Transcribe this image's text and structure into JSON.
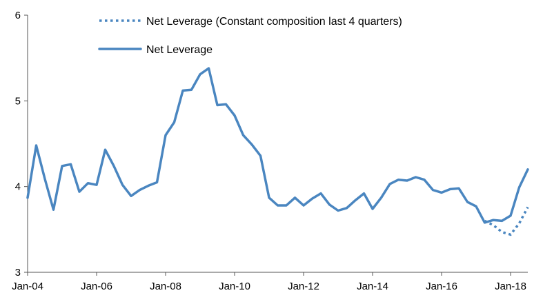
{
  "chart_data": {
    "type": "line",
    "title": "",
    "xlabel": "",
    "ylabel": "",
    "x_range": [
      "2004-01",
      "2018-07"
    ],
    "ylim": [
      3,
      6
    ],
    "y_ticks": [
      3,
      4,
      5,
      6
    ],
    "x_ticks": [
      "Jan-04",
      "Jan-06",
      "Jan-08",
      "Jan-10",
      "Jan-12",
      "Jan-14",
      "Jan-16",
      "Jan-18"
    ],
    "x_tick_positions": [
      "2004-01",
      "2006-01",
      "2008-01",
      "2010-01",
      "2012-01",
      "2014-01",
      "2016-01",
      "2018-01"
    ],
    "grid": false,
    "legend_position": "top-left",
    "color": "#4a86c0",
    "series": [
      {
        "name": "Net Leverage (Constant composition last 4 quarters)",
        "style": "dotted",
        "x": [
          "2017-04",
          "2017-07",
          "2017-10",
          "2018-01",
          "2018-04",
          "2018-07"
        ],
        "y": [
          3.6,
          3.55,
          3.47,
          3.44,
          3.57,
          3.76
        ]
      },
      {
        "name": "Net Leverage",
        "style": "solid",
        "x": [
          "2004-01",
          "2004-04",
          "2004-07",
          "2004-10",
          "2005-01",
          "2005-04",
          "2005-07",
          "2005-10",
          "2006-01",
          "2006-04",
          "2006-07",
          "2006-10",
          "2007-01",
          "2007-04",
          "2007-07",
          "2007-10",
          "2008-01",
          "2008-04",
          "2008-07",
          "2008-10",
          "2009-01",
          "2009-04",
          "2009-07",
          "2009-10",
          "2010-01",
          "2010-04",
          "2010-07",
          "2010-10",
          "2011-01",
          "2011-04",
          "2011-07",
          "2011-10",
          "2012-01",
          "2012-04",
          "2012-07",
          "2012-10",
          "2013-01",
          "2013-04",
          "2013-07",
          "2013-10",
          "2014-01",
          "2014-04",
          "2014-07",
          "2014-10",
          "2015-01",
          "2015-04",
          "2015-07",
          "2015-10",
          "2016-01",
          "2016-04",
          "2016-07",
          "2016-10",
          "2017-01",
          "2017-04",
          "2017-07",
          "2017-10",
          "2018-01",
          "2018-04",
          "2018-07"
        ],
        "y": [
          3.87,
          4.48,
          4.09,
          3.73,
          4.24,
          4.26,
          3.94,
          4.04,
          4.02,
          4.43,
          4.24,
          4.02,
          3.89,
          3.96,
          4.01,
          4.05,
          4.6,
          4.75,
          5.12,
          5.13,
          5.31,
          5.38,
          4.95,
          4.96,
          4.83,
          4.6,
          4.49,
          4.36,
          3.87,
          3.78,
          3.78,
          3.87,
          3.78,
          3.86,
          3.92,
          3.79,
          3.72,
          3.75,
          3.84,
          3.92,
          3.74,
          3.87,
          4.03,
          4.08,
          4.07,
          4.11,
          4.08,
          3.96,
          3.93,
          3.97,
          3.98,
          3.82,
          3.77,
          3.58,
          3.61,
          3.6,
          3.66,
          3.99,
          4.2
        ]
      }
    ]
  }
}
